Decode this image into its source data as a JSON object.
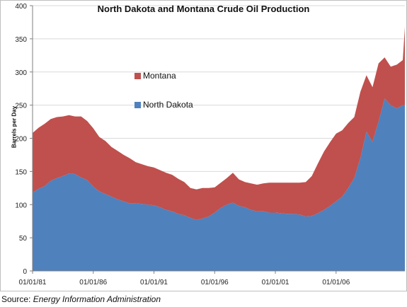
{
  "chart_data": {
    "type": "area",
    "stacked": true,
    "title": "North Dakota and Montana Crude Oil Production",
    "ylabel": "Barrels per Day",
    "xlabel": "",
    "ylim": [
      0,
      400
    ],
    "yticks": [
      0,
      50,
      100,
      150,
      200,
      250,
      300,
      350,
      400
    ],
    "xticks": [
      "01/01/81",
      "01/01/86",
      "01/01/91",
      "01/01/96",
      "01/01/01",
      "01/01/06"
    ],
    "xrange": [
      "1981-01",
      "2011-09"
    ],
    "grid": "horizontal",
    "legend_position": "center-left",
    "x": [
      "1981-01",
      "1981-07",
      "1982-01",
      "1982-07",
      "1983-01",
      "1983-07",
      "1984-01",
      "1984-07",
      "1985-01",
      "1985-07",
      "1986-01",
      "1986-07",
      "1987-01",
      "1987-07",
      "1988-01",
      "1988-07",
      "1989-01",
      "1989-07",
      "1990-01",
      "1990-07",
      "1991-01",
      "1991-07",
      "1992-01",
      "1992-07",
      "1993-01",
      "1993-07",
      "1994-01",
      "1994-07",
      "1995-01",
      "1995-07",
      "1996-01",
      "1996-07",
      "1997-01",
      "1997-07",
      "1998-01",
      "1998-07",
      "1999-01",
      "1999-07",
      "2000-01",
      "2000-07",
      "2001-01",
      "2001-07",
      "2002-01",
      "2002-07",
      "2003-01",
      "2003-07",
      "2004-01",
      "2004-07",
      "2005-01",
      "2005-07",
      "2006-01",
      "2006-07",
      "2007-01",
      "2007-07",
      "2008-01",
      "2008-07",
      "2009-01",
      "2009-07",
      "2010-01",
      "2010-07",
      "2011-01",
      "2011-07",
      "2011-09"
    ],
    "series": [
      {
        "name": "North Dakota",
        "color": "#4f81bd",
        "values": [
          118,
          124,
          128,
          136,
          140,
          143,
          147,
          146,
          141,
          137,
          127,
          120,
          116,
          112,
          108,
          105,
          102,
          102,
          101,
          100,
          99,
          96,
          92,
          90,
          86,
          84,
          80,
          77,
          79,
          82,
          88,
          95,
          100,
          103,
          98,
          96,
          92,
          90,
          90,
          88,
          88,
          87,
          86,
          86,
          85,
          82,
          83,
          87,
          92,
          98,
          105,
          112,
          125,
          140,
          170,
          210,
          195,
          225,
          260,
          250,
          245,
          250,
          250
        ]
      },
      {
        "name": "Montana",
        "color": "#c0504d",
        "values": [
          90,
          92,
          94,
          93,
          92,
          90,
          88,
          87,
          92,
          89,
          88,
          82,
          80,
          75,
          73,
          70,
          68,
          62,
          60,
          58,
          57,
          56,
          56,
          55,
          53,
          50,
          45,
          46,
          46,
          43,
          38,
          38,
          40,
          45,
          40,
          38,
          40,
          40,
          42,
          45,
          45,
          46,
          47,
          47,
          48,
          52,
          60,
          75,
          88,
          96,
          102,
          100,
          98,
          92,
          100,
          85,
          82,
          88,
          62,
          58,
          66,
          68,
          118
        ]
      }
    ]
  },
  "legend": {
    "montana_label": "Montana",
    "north_dakota_label": "North Dakota"
  },
  "source": {
    "prefix": "Source:",
    "name": "Energy Information Administration"
  }
}
